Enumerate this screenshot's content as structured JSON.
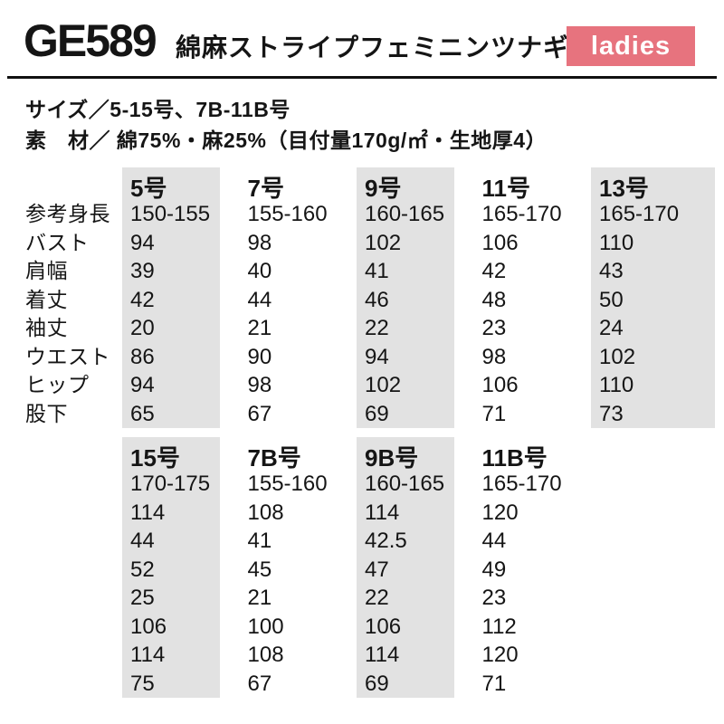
{
  "header": {
    "product_code": "GE589",
    "product_name": "綿麻ストライプフェミニンツナギ",
    "badge_label": "ladies"
  },
  "specs": {
    "size_line": "サイズ／5-15号、7B-11B号",
    "material_line": "素　材／ 綿75%・麻25%（目付量170g/㎡・生地厚4）"
  },
  "measurement_labels": [
    "参考身長",
    "バスト",
    "肩幅",
    "着丈",
    "袖丈",
    "ウエスト",
    "ヒップ",
    "股下"
  ],
  "tables": [
    {
      "columns": [
        {
          "size": "5号",
          "shaded": true,
          "wide": false,
          "values": [
            "150-155",
            "94",
            "39",
            "42",
            "20",
            "86",
            "94",
            "65"
          ]
        },
        {
          "size": "7号",
          "shaded": false,
          "wide": false,
          "values": [
            "155-160",
            "98",
            "40",
            "44",
            "21",
            "90",
            "98",
            "67"
          ]
        },
        {
          "size": "9号",
          "shaded": true,
          "wide": false,
          "values": [
            "160-165",
            "102",
            "41",
            "46",
            "22",
            "94",
            "102",
            "69"
          ]
        },
        {
          "size": "11号",
          "shaded": false,
          "wide": false,
          "values": [
            "165-170",
            "106",
            "42",
            "48",
            "23",
            "98",
            "106",
            "71"
          ]
        },
        {
          "size": "13号",
          "shaded": true,
          "wide": true,
          "values": [
            "165-170",
            "110",
            "43",
            "50",
            "24",
            "102",
            "110",
            "73"
          ]
        }
      ]
    },
    {
      "columns": [
        {
          "size": "15号",
          "shaded": true,
          "wide": false,
          "values": [
            "170-175",
            "114",
            "44",
            "52",
            "25",
            "106",
            "114",
            "75"
          ]
        },
        {
          "size": "7B号",
          "shaded": false,
          "wide": false,
          "values": [
            "155-160",
            "108",
            "41",
            "45",
            "21",
            "100",
            "108",
            "67"
          ]
        },
        {
          "size": "9B号",
          "shaded": true,
          "wide": false,
          "values": [
            "160-165",
            "114",
            "42.5",
            "47",
            "22",
            "106",
            "114",
            "69"
          ]
        },
        {
          "size": "11B号",
          "shaded": false,
          "wide": false,
          "values": [
            "165-170",
            "120",
            "44",
            "49",
            "23",
            "112",
            "120",
            "71"
          ]
        }
      ]
    }
  ],
  "colors": {
    "badge_bg": "#e7737e",
    "shaded_column": "#e2e2e2",
    "text": "#151515"
  }
}
